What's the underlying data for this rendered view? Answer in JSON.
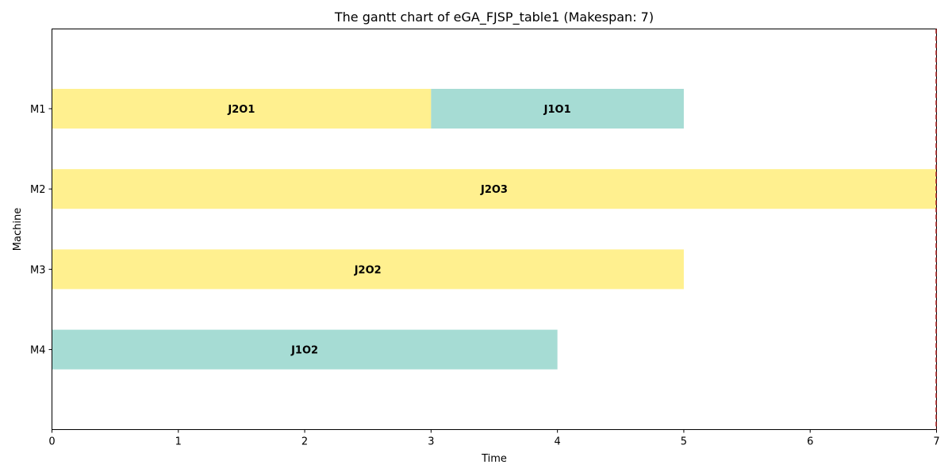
{
  "chart_data": {
    "type": "gantt",
    "title": "The gantt chart of eGA_FJSP_table1 (Makespan: 7)",
    "xlabel": "Time",
    "ylabel": "Machine",
    "xlim": [
      0,
      7
    ],
    "x_ticks": [
      "0",
      "1",
      "2",
      "3",
      "4",
      "5",
      "6",
      "7"
    ],
    "machines": [
      "M1",
      "M2",
      "M3",
      "M4"
    ],
    "makespan": 7,
    "makespan_line_color": "#b22222",
    "job_colors": {
      "J1": "#a6dcd4",
      "J2": "#fff08f"
    },
    "tasks": [
      {
        "label": "J2O1",
        "job": "J2",
        "machine": "M1",
        "start": 0,
        "end": 3
      },
      {
        "label": "J1O1",
        "job": "J1",
        "machine": "M1",
        "start": 3,
        "end": 5
      },
      {
        "label": "J2O3",
        "job": "J2",
        "machine": "M2",
        "start": 0,
        "end": 7
      },
      {
        "label": "J2O2",
        "job": "J2",
        "machine": "M3",
        "start": 0,
        "end": 5
      },
      {
        "label": "J1O2",
        "job": "J1",
        "machine": "M4",
        "start": 0,
        "end": 4
      }
    ],
    "grid": false
  }
}
